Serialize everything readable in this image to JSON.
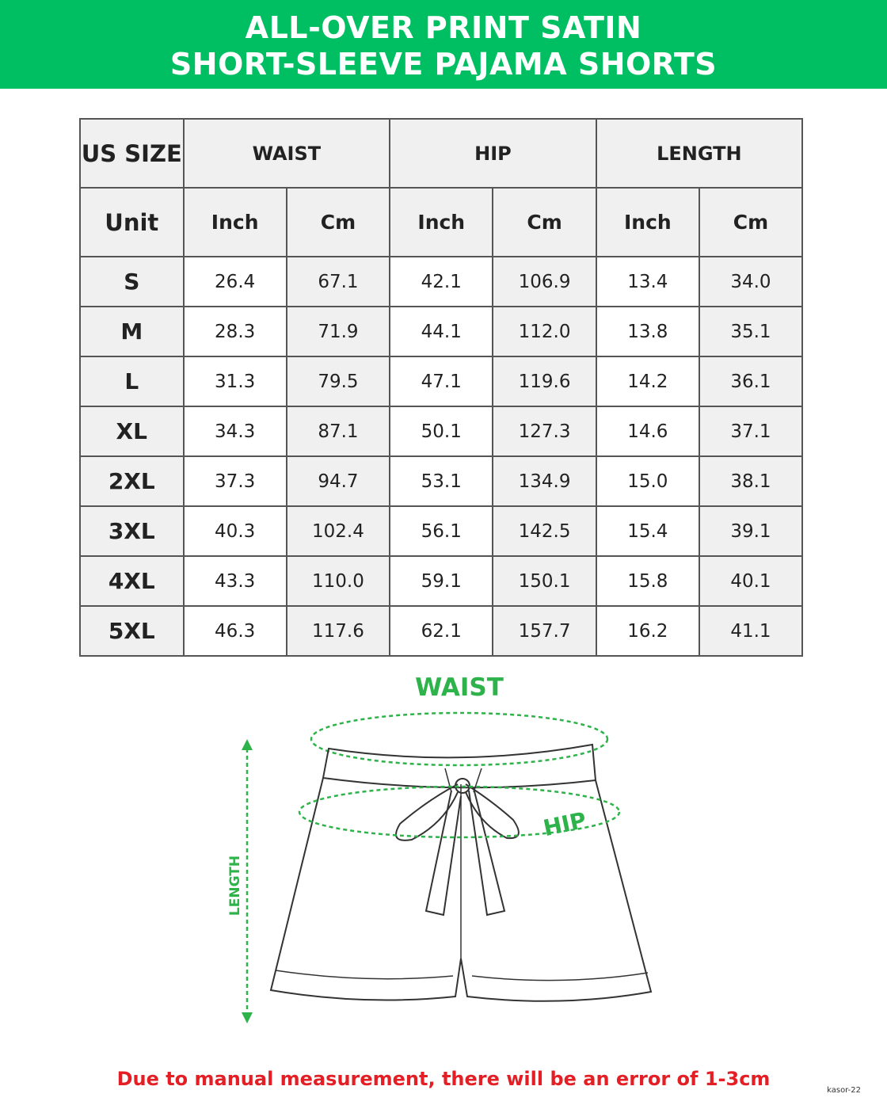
{
  "title": {
    "line1": "ALL-OVER PRINT SATIN",
    "line2": "SHORT-SLEEVE PAJAMA SHORTS"
  },
  "colors": {
    "brand_green": "#00bf63",
    "diagram_green": "#2db34a",
    "warning_red": "#e31e24"
  },
  "table": {
    "header": {
      "size_label": "US SIZE",
      "groups": [
        "WAIST",
        "HIP",
        "LENGTH"
      ]
    },
    "unit_row": {
      "label": "Unit",
      "units": [
        "Inch",
        "Cm",
        "Inch",
        "Cm",
        "Inch",
        "Cm"
      ]
    },
    "rows": [
      {
        "size": "S",
        "values": [
          "26.4",
          "67.1",
          "42.1",
          "106.9",
          "13.4",
          "34.0"
        ]
      },
      {
        "size": "M",
        "values": [
          "28.3",
          "71.9",
          "44.1",
          "112.0",
          "13.8",
          "35.1"
        ]
      },
      {
        "size": "L",
        "values": [
          "31.3",
          "79.5",
          "47.1",
          "119.6",
          "14.2",
          "36.1"
        ]
      },
      {
        "size": "XL",
        "values": [
          "34.3",
          "87.1",
          "50.1",
          "127.3",
          "14.6",
          "37.1"
        ]
      },
      {
        "size": "2XL",
        "values": [
          "37.3",
          "94.7",
          "53.1",
          "134.9",
          "15.0",
          "38.1"
        ]
      },
      {
        "size": "3XL",
        "values": [
          "40.3",
          "102.4",
          "56.1",
          "142.5",
          "15.4",
          "39.1"
        ]
      },
      {
        "size": "4XL",
        "values": [
          "43.3",
          "110.0",
          "59.1",
          "150.1",
          "15.8",
          "40.1"
        ]
      },
      {
        "size": "5XL",
        "values": [
          "46.3",
          "117.6",
          "62.1",
          "157.7",
          "16.2",
          "41.1"
        ]
      }
    ]
  },
  "diagram": {
    "waist_label": "WAIST",
    "hip_label": "HIP",
    "length_label": "LENGTH"
  },
  "note": "Due to manual measurement, there will be an error of 1-3cm",
  "credit": "kasor-22"
}
